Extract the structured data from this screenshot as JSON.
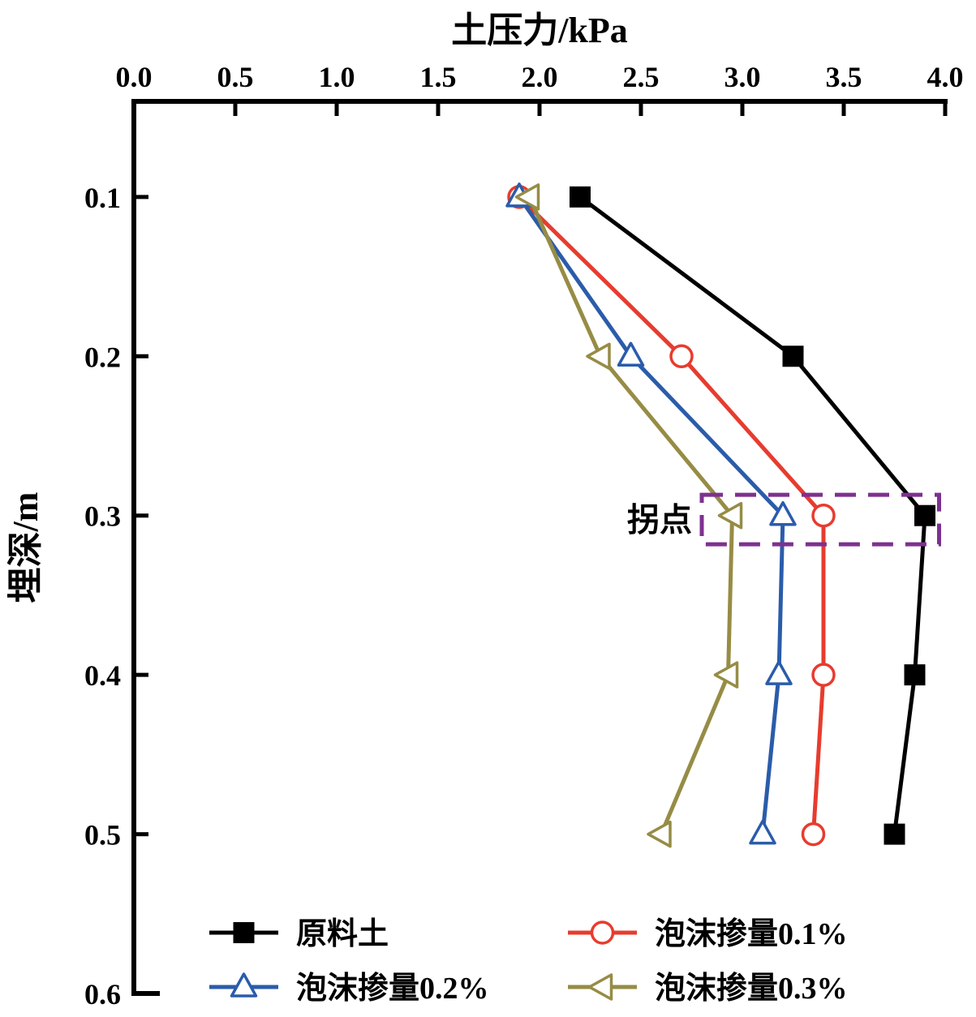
{
  "chart_data": {
    "type": "line",
    "title": "",
    "xlabel": "土压力/kPa",
    "ylabel": "埋深/m",
    "xlim": [
      0.0,
      4.0
    ],
    "ylim": [
      0.04,
      0.6
    ],
    "y_inverted": true,
    "grid": false,
    "legend_position": "bottom",
    "xtick_values": [
      0.0,
      0.5,
      1.0,
      1.5,
      2.0,
      2.5,
      3.0,
      3.5,
      4.0
    ],
    "xtick_labels": [
      "0.0",
      "0.5",
      "1.0",
      "1.5",
      "2.0",
      "2.5",
      "3.0",
      "3.5",
      "4.0"
    ],
    "ytick_values": [
      0.1,
      0.2,
      0.3,
      0.4,
      0.5,
      0.6
    ],
    "ytick_labels": [
      "0.1",
      "0.2",
      "0.3",
      "0.4",
      "0.5",
      "0.6"
    ],
    "depths": [
      0.1,
      0.2,
      0.3,
      0.4,
      0.5
    ],
    "series": [
      {
        "name": "原料土",
        "color": "#000000",
        "marker": "square-filled",
        "values": [
          2.2,
          3.25,
          3.9,
          3.85,
          3.75
        ]
      },
      {
        "name": "泡沫掺量0.1%",
        "color": "#e73c2e",
        "marker": "circle-open",
        "values": [
          1.9,
          2.7,
          3.4,
          3.4,
          3.35
        ]
      },
      {
        "name": "泡沫掺量0.2%",
        "color": "#2a5caa",
        "marker": "triangle-up-open",
        "values": [
          1.9,
          2.45,
          3.2,
          3.18,
          3.1
        ]
      },
      {
        "name": "泡沫掺量0.3%",
        "color": "#968c45",
        "marker": "triangle-left-open",
        "values": [
          1.95,
          2.3,
          2.95,
          2.93,
          2.6
        ]
      }
    ],
    "annotation": {
      "label": "拐点",
      "box_color": "#7d3190",
      "x1": 2.8,
      "x2": 3.97,
      "y1": 0.287,
      "y2": 0.318
    }
  }
}
